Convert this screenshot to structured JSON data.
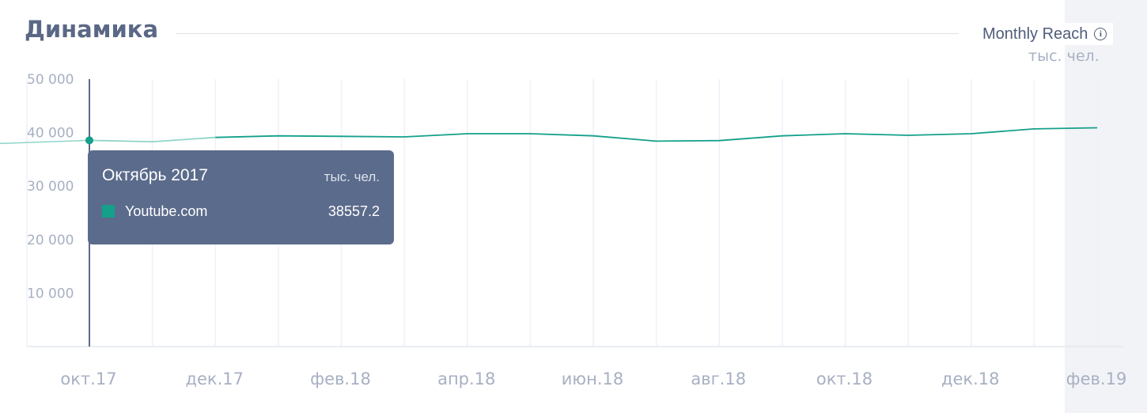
{
  "header": {
    "title": "Динамика",
    "metric_label": "Monthly Reach",
    "unit": "тыс. чел."
  },
  "icons": {
    "info": "info-icon"
  },
  "colors": {
    "series": "#14a08a",
    "tooltip_bg": "#5b6b8b",
    "title": "#5a6886",
    "axis_text": "#a7b0c3"
  },
  "tooltip": {
    "title": "Октябрь 2017",
    "unit": "тыс. чел.",
    "series_name": "Youtube.com",
    "value": "38557.2"
  },
  "chart_data": {
    "type": "line",
    "x": [
      "2017-10",
      "2017-11",
      "2017-12",
      "2018-01",
      "2018-02",
      "2018-03",
      "2018-04",
      "2018-05",
      "2018-06",
      "2018-07",
      "2018-08",
      "2018-09",
      "2018-10",
      "2018-11",
      "2018-12",
      "2019-01",
      "2019-02"
    ],
    "series": [
      {
        "name": "Youtube.com",
        "values": [
          38557.2,
          38300,
          39100,
          39400,
          39300,
          39200,
          39800,
          39800,
          39400,
          38400,
          38500,
          39400,
          39800,
          39500,
          39800,
          40700,
          40900
        ]
      }
    ],
    "y_ticks": [
      "50 000",
      "40 000",
      "30 000",
      "20 000",
      "10 000"
    ],
    "y_tick_values": [
      50000,
      40000,
      30000,
      20000,
      10000
    ],
    "x_tick_labels": [
      "окт.17",
      "дек.17",
      "фев.18",
      "апр.18",
      "июн.18",
      "авг.18",
      "окт.18",
      "дек.18",
      "фев.19"
    ],
    "x_tick_index": [
      0,
      2,
      4,
      6,
      8,
      10,
      12,
      14,
      16
    ],
    "ylim": [
      0,
      50000
    ],
    "highlight_index": 0,
    "grid": true,
    "xlabel": "",
    "ylabel": "тыс. чел."
  }
}
